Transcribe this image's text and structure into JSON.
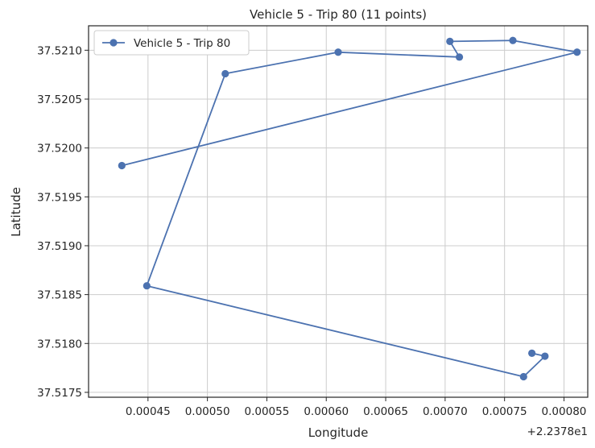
{
  "chart_data": {
    "type": "line",
    "title": "Vehicle 5 - Trip 80 (11 points)",
    "xlabel": "Longitude",
    "ylabel": "Latitude",
    "x_offset_label": "+2.2378e1",
    "xlim": [
      0.0004,
      0.00082
    ],
    "ylim": [
      37.51745,
      37.52125
    ],
    "x_ticks": [
      0.00045,
      0.0005,
      0.00055,
      0.0006,
      0.00065,
      0.0007,
      0.00075,
      0.0008
    ],
    "x_tick_labels": [
      "0.00045",
      "0.00050",
      "0.00055",
      "0.00060",
      "0.00065",
      "0.00070",
      "0.00075",
      "0.00080"
    ],
    "y_ticks": [
      37.5175,
      37.518,
      37.5185,
      37.519,
      37.5195,
      37.52,
      37.5205,
      37.521
    ],
    "y_tick_labels": [
      "37.5175",
      "37.5180",
      "37.5185",
      "37.5190",
      "37.5195",
      "37.5200",
      "37.5205",
      "37.5210"
    ],
    "grid": true,
    "legend_position": "top-left",
    "series": [
      {
        "name": "Vehicle 5 - Trip 80",
        "color": "#4c72b0",
        "x": [
          0.000773,
          0.000784,
          0.000766,
          0.000449,
          0.000515,
          0.00061,
          0.000712,
          0.000704,
          0.000757,
          0.000811,
          0.000428
        ],
        "y": [
          37.5179,
          37.51787,
          37.51766,
          37.51859,
          37.52076,
          37.52098,
          37.52093,
          37.52109,
          37.5211,
          37.52098,
          37.51982
        ]
      }
    ]
  }
}
